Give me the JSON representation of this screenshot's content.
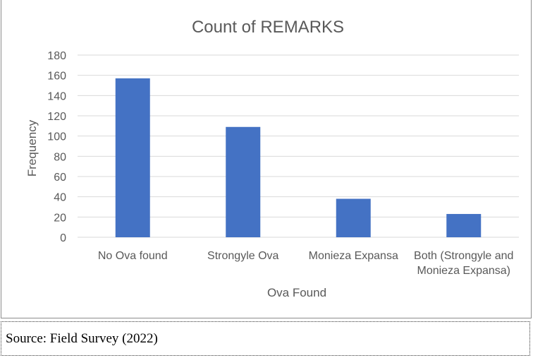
{
  "chart_data": {
    "type": "bar",
    "title": "Count of REMARKS",
    "xlabel": "Ova Found",
    "ylabel": "Frequency",
    "categories": [
      [
        "No Ova found"
      ],
      [
        "Strongyle Ova"
      ],
      [
        "Monieza Expansa"
      ],
      [
        "Both (Strongyle and",
        "Monieza Expansa)"
      ]
    ],
    "values": [
      157,
      109,
      38,
      23
    ],
    "ylim": [
      0,
      180
    ],
    "yticks": [
      0,
      20,
      40,
      60,
      80,
      100,
      120,
      140,
      160,
      180
    ],
    "grid": true,
    "bar_color": "#4472C4"
  },
  "source": "Source: Field Survey (2022)"
}
